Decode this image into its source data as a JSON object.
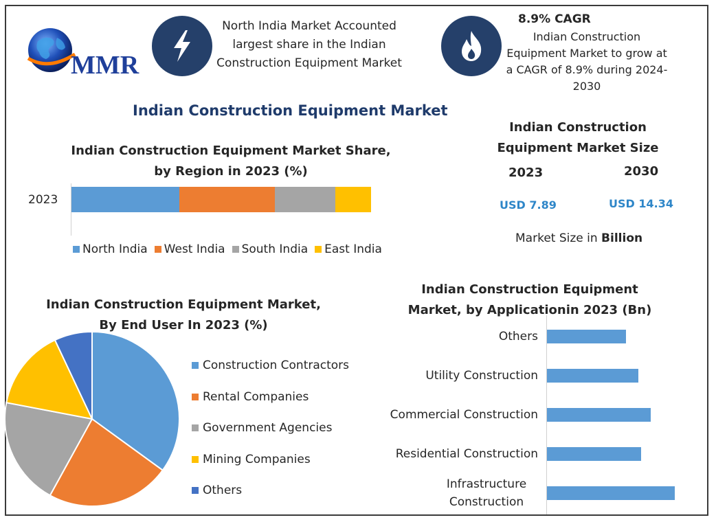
{
  "logo": {
    "text": "MMR"
  },
  "info_left": {
    "text": "North India Market Accounted largest share in the Indian Construction Equipment Market"
  },
  "info_right": {
    "headline": "8.9% CAGR",
    "text": "Indian Construction Equipment Market to grow at a CAGR of 8.9% during 2024-2030"
  },
  "main_title": "Indian Construction Equipment Market",
  "market_size": {
    "title": "Indian Construction Equipment Market Size",
    "year_a": "2023",
    "year_b": "2030",
    "value_a": "USD 7.89",
    "value_b": "USD 14.34",
    "note_prefix": "Market Size in ",
    "note_bold": "Billion"
  },
  "colors": {
    "blue": "#5b9bd5",
    "orange": "#ed7d31",
    "gray": "#a5a5a5",
    "yellow": "#ffc000",
    "navy": "#4472c4",
    "icon_bg": "#25406a",
    "title": "#1f3b6b",
    "usd": "#2e86c8"
  },
  "chart_data": [
    {
      "type": "bar",
      "orientation": "horizontal-stacked",
      "title": "Indian Construction Equipment Market Share, by Region in 2023 (%)",
      "categories": [
        "2023"
      ],
      "series": [
        {
          "name": "North India",
          "values": [
            36
          ],
          "color": "#5b9bd5"
        },
        {
          "name": "West India",
          "values": [
            32
          ],
          "color": "#ed7d31"
        },
        {
          "name": "South India",
          "values": [
            20
          ],
          "color": "#a5a5a5"
        },
        {
          "name": "East India",
          "values": [
            12
          ],
          "color": "#ffc000"
        }
      ],
      "legend": "bottom"
    },
    {
      "type": "pie",
      "title": "Indian Construction Equipment Market, By End User In 2023 (%)",
      "labels": [
        "Construction Contractors",
        "Rental Companies",
        "Government Agencies",
        "Mining Companies",
        "Others"
      ],
      "values": [
        35,
        23,
        20,
        15,
        7
      ],
      "colors": [
        "#5b9bd5",
        "#ed7d31",
        "#a5a5a5",
        "#ffc000",
        "#4472c4"
      ],
      "legend": "right"
    },
    {
      "type": "bar",
      "orientation": "horizontal",
      "title": "Indian Construction Equipment Market, by Applicationin 2023 (Bn)",
      "categories": [
        "Others",
        "Utility Construction",
        "Commercial Construction",
        "Residential Construction",
        "Infrastructure Construction"
      ],
      "values": [
        1.3,
        1.5,
        1.7,
        1.55,
        2.1
      ],
      "color": "#5b9bd5",
      "xlim": [
        0,
        2.1
      ]
    }
  ]
}
